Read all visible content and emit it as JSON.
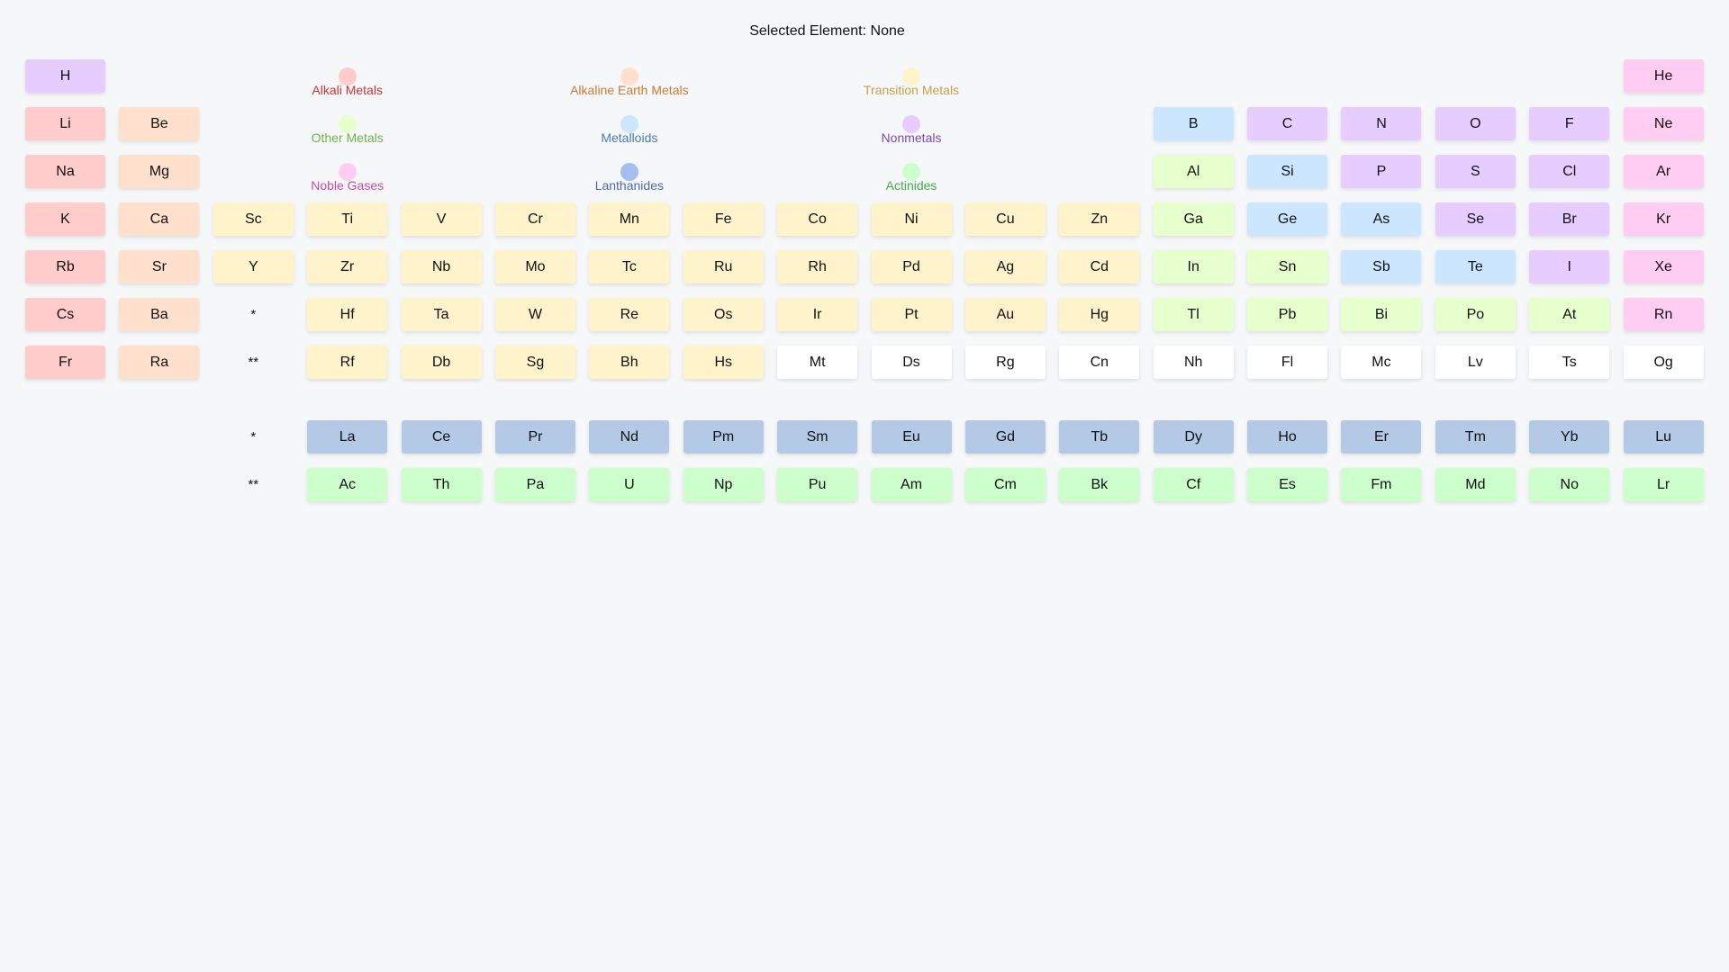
{
  "status": {
    "selected_text": "Selected Element: None"
  },
  "colors": {
    "alkali": "#ffcccc",
    "alkaline": "#ffe0cc",
    "transition": "#fff3cc",
    "other": "#e6ffcc",
    "metalloid": "#cce6ff",
    "nonmetal": "#e6ccff",
    "noble": "#ffccf2",
    "lanthanide": "#b3c9e6",
    "actinide": "#ccffcc",
    "unknown": "#ffffff"
  },
  "legend": [
    {
      "label": "Alkali Metals",
      "dot": "#ffcccc",
      "text_color": "#cc3333"
    },
    {
      "label": "Alkaline Earth Metals",
      "dot": "#ffe0cc",
      "text_color": "#cc7a33"
    },
    {
      "label": "Transition Metals",
      "dot": "#fff3cc",
      "text_color": "#c9a04a"
    },
    {
      "label": "Other Metals",
      "dot": "#e6ffcc",
      "text_color": "#6fb24a"
    },
    {
      "label": "Metalloids",
      "dot": "#cce6ff",
      "text_color": "#4a7ab2"
    },
    {
      "label": "Nonmetals",
      "dot": "#e6ccff",
      "text_color": "#7a4ab2"
    },
    {
      "label": "Noble Gases",
      "dot": "#ffccf2",
      "text_color": "#cc4aa6"
    },
    {
      "label": "Lanthanides",
      "dot": "#a4bfef",
      "text_color": "#4a6ab2"
    },
    {
      "label": "Actinides",
      "dot": "#ccffcc",
      "text_color": "#4aaa4a"
    }
  ],
  "markers": {
    "lanthanide": "*",
    "actinide": "**"
  },
  "main_table": [
    [
      "H:nonmetal",
      null,
      null,
      null,
      null,
      null,
      null,
      null,
      null,
      null,
      null,
      null,
      null,
      null,
      null,
      null,
      null,
      "He:noble"
    ],
    [
      "Li:alkali",
      "Be:alkaline",
      null,
      null,
      null,
      null,
      null,
      null,
      null,
      null,
      null,
      null,
      "B:metalloid",
      "C:nonmetal",
      "N:nonmetal",
      "O:nonmetal",
      "F:nonmetal",
      "Ne:noble"
    ],
    [
      "Na:alkali",
      "Mg:alkaline",
      null,
      null,
      null,
      null,
      null,
      null,
      null,
      null,
      null,
      null,
      "Al:other",
      "Si:metalloid",
      "P:nonmetal",
      "S:nonmetal",
      "Cl:nonmetal",
      "Ar:noble"
    ],
    [
      "K:alkali",
      "Ca:alkaline",
      "Sc:transition",
      "Ti:transition",
      "V:transition",
      "Cr:transition",
      "Mn:transition",
      "Fe:transition",
      "Co:transition",
      "Ni:transition",
      "Cu:transition",
      "Zn:transition",
      "Ga:other",
      "Ge:metalloid",
      "As:metalloid",
      "Se:nonmetal",
      "Br:nonmetal",
      "Kr:noble"
    ],
    [
      "Rb:alkali",
      "Sr:alkaline",
      "Y:transition",
      "Zr:transition",
      "Nb:transition",
      "Mo:transition",
      "Tc:transition",
      "Ru:transition",
      "Rh:transition",
      "Pd:transition",
      "Ag:transition",
      "Cd:transition",
      "In:other",
      "Sn:other",
      "Sb:metalloid",
      "Te:metalloid",
      "I:nonmetal",
      "Xe:noble"
    ],
    [
      "Cs:alkali",
      "Ba:alkaline",
      "*",
      "Hf:transition",
      "Ta:transition",
      "W:transition",
      "Re:transition",
      "Os:transition",
      "Ir:transition",
      "Pt:transition",
      "Au:transition",
      "Hg:transition",
      "Tl:other",
      "Pb:other",
      "Bi:other",
      "Po:other",
      "At:other",
      "Rn:noble"
    ],
    [
      "Fr:alkali",
      "Ra:alkaline",
      "**",
      "Rf:transition",
      "Db:transition",
      "Sg:transition",
      "Bh:transition",
      "Hs:transition",
      "Mt:unknown",
      "Ds:unknown",
      "Rg:unknown",
      "Cn:unknown",
      "Nh:unknown",
      "Fl:unknown",
      "Mc:unknown",
      "Lv:unknown",
      "Ts:unknown",
      "Og:unknown"
    ]
  ],
  "f_block": [
    [
      null,
      null,
      "*",
      "La:lanthanide",
      "Ce:lanthanide",
      "Pr:lanthanide",
      "Nd:lanthanide",
      "Pm:lanthanide",
      "Sm:lanthanide",
      "Eu:lanthanide",
      "Gd:lanthanide",
      "Tb:lanthanide",
      "Dy:lanthanide",
      "Ho:lanthanide",
      "Er:lanthanide",
      "Tm:lanthanide",
      "Yb:lanthanide",
      "Lu:lanthanide"
    ],
    [
      null,
      null,
      "**",
      "Ac:actinide",
      "Th:actinide",
      "Pa:actinide",
      "U:actinide",
      "Np:actinide",
      "Pu:actinide",
      "Am:actinide",
      "Cm:actinide",
      "Bk:actinide",
      "Cf:actinide",
      "Es:actinide",
      "Fm:actinide",
      "Md:actinide",
      "No:actinide",
      "Lr:actinide"
    ]
  ]
}
